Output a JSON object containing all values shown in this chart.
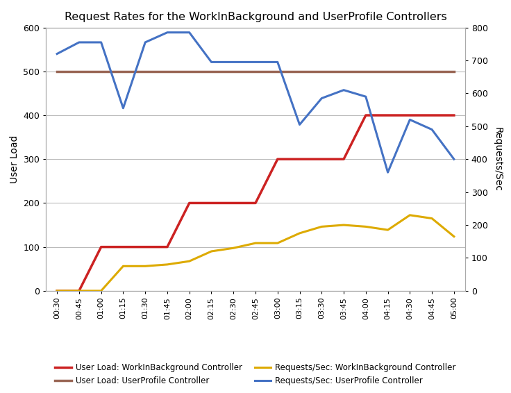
{
  "title": "Request Rates for the WorkInBackground and UserProfile Controllers",
  "ylabel_left": "User Load",
  "ylabel_right": "Requests/Sec",
  "x_labels": [
    "00:30",
    "00:45",
    "01:00",
    "01:15",
    "01:30",
    "01:45",
    "02:00",
    "02:15",
    "02:30",
    "02:45",
    "03:00",
    "03:15",
    "03:30",
    "03:45",
    "04:00",
    "04:15",
    "04:30",
    "04:45",
    "05:00"
  ],
  "user_load_wib": [
    0,
    0,
    100,
    100,
    100,
    100,
    200,
    200,
    200,
    200,
    300,
    300,
    300,
    300,
    400,
    400,
    400,
    400,
    400
  ],
  "user_load_up": [
    500,
    500,
    500,
    500,
    500,
    500,
    500,
    500,
    500,
    500,
    500,
    500,
    500,
    500,
    500,
    500,
    500,
    500,
    500
  ],
  "req_wib": [
    0,
    0,
    0,
    75,
    75,
    80,
    90,
    120,
    130,
    145,
    145,
    175,
    195,
    200,
    195,
    185,
    230,
    220,
    165
  ],
  "req_up": [
    720,
    755,
    755,
    555,
    755,
    785,
    785,
    695,
    695,
    695,
    695,
    505,
    585,
    610,
    590,
    360,
    520,
    490,
    400
  ],
  "color_user_wib": "#cc2222",
  "color_user_up": "#996655",
  "color_req_wib": "#ddaa00",
  "color_req_up": "#4472c4",
  "ylim_left": [
    0,
    600
  ],
  "ylim_right": [
    0,
    800
  ],
  "yticks_left": [
    0,
    100,
    200,
    300,
    400,
    500,
    600
  ],
  "yticks_right": [
    0,
    100,
    200,
    300,
    400,
    500,
    600,
    700,
    800
  ],
  "legend_row1": [
    "User Load: WorkInBackground Controller",
    "User Load: UserProfile Controller"
  ],
  "legend_row2": [
    "Requests/Sec: WorkInBackground Controller",
    "Requests/Sec: UserProfile Controller"
  ],
  "bg_color": "#ffffff",
  "grid_color": "#bbbbbb",
  "linewidth": 2.2,
  "border_color": "#aaaaaa"
}
